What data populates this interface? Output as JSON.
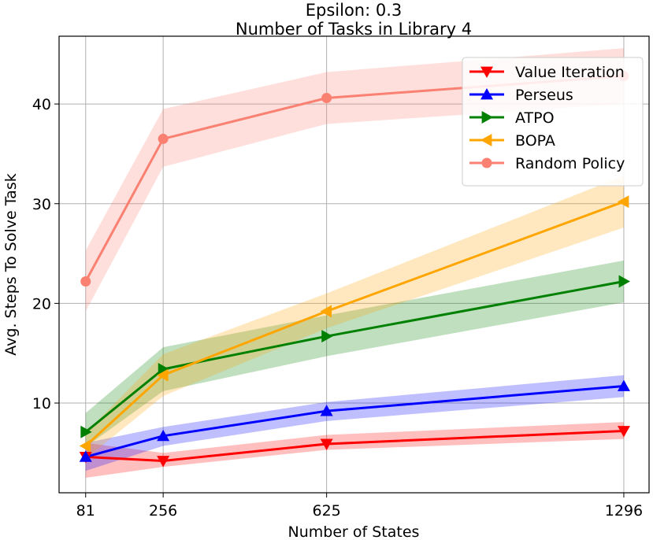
{
  "chart_data": {
    "type": "line",
    "title": "Epsilon: 0.3",
    "subtitle": "Number of Tasks in Library 4",
    "xlabel": "Number of States",
    "ylabel": "Avg. Steps To Solve Task",
    "x": [
      81,
      256,
      625,
      1296
    ],
    "x_ticks": [
      "81",
      "256",
      "625",
      "1296"
    ],
    "y_ticks": [
      10,
      20,
      30,
      40
    ],
    "xlim": [
      21,
      1353
    ],
    "ylim": [
      1,
      46.8
    ],
    "grid": true,
    "legend_position": "top-right",
    "series": [
      {
        "name": "Value Iteration",
        "color": "#ff0000",
        "marker": "triangle-down",
        "values": [
          4.6,
          4.2,
          5.9,
          7.2
        ],
        "band_low": [
          2.5,
          3.6,
          5.3,
          6.4
        ],
        "band_high": [
          6.0,
          5.0,
          6.8,
          8.1
        ]
      },
      {
        "name": "Perseus",
        "color": "#0000ff",
        "marker": "triangle-up",
        "values": [
          4.6,
          6.7,
          9.2,
          11.7
        ],
        "band_low": [
          3.2,
          5.7,
          8.2,
          10.6
        ],
        "band_high": [
          6.0,
          7.6,
          10.1,
          12.8
        ]
      },
      {
        "name": "ATPO",
        "color": "#008000",
        "marker": "triangle-right",
        "values": [
          7.1,
          13.4,
          16.7,
          22.2
        ],
        "band_low": [
          5.6,
          11.2,
          14.7,
          20.1
        ],
        "band_high": [
          9.0,
          15.6,
          18.8,
          24.3
        ]
      },
      {
        "name": "BOPA",
        "color": "#ffa500",
        "marker": "triangle-left",
        "values": [
          5.7,
          12.8,
          19.2,
          30.2
        ],
        "band_low": [
          4.4,
          10.7,
          17.5,
          27.6
        ],
        "band_high": [
          7.0,
          14.9,
          21.0,
          32.8
        ]
      },
      {
        "name": "Random Policy",
        "color": "#fa8072",
        "marker": "circle",
        "values": [
          22.2,
          36.5,
          40.6,
          42.8
        ],
        "band_low": [
          19.2,
          33.7,
          38.0,
          40.0
        ],
        "band_high": [
          25.3,
          39.5,
          43.2,
          45.6
        ]
      }
    ]
  }
}
